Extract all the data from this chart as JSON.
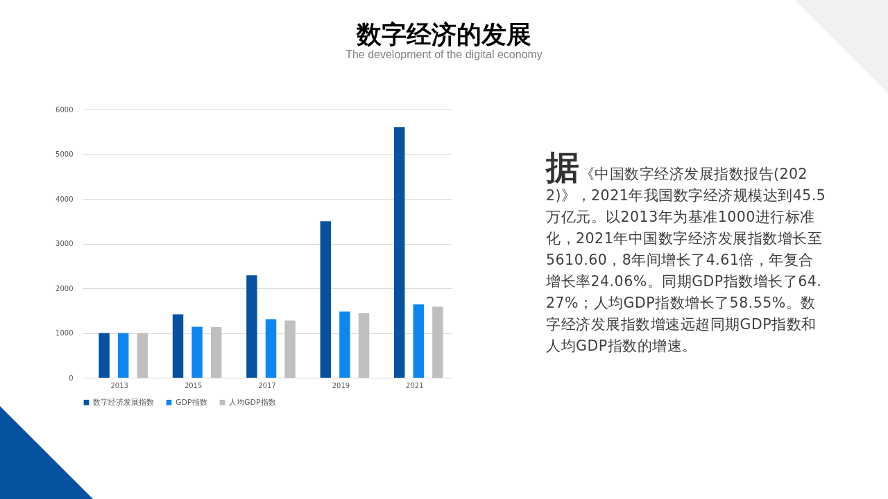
{
  "chart_data": {
    "type": "bar",
    "title": "数字经济的发展",
    "subtitle": "The development of the digital economy",
    "categories": [
      "2013",
      "2015",
      "2017",
      "2019",
      "2021"
    ],
    "series": [
      {
        "name": "数字经济发展指数",
        "color": "#0652a0",
        "values": [
          1000,
          1420,
          2290,
          3500,
          5610
        ]
      },
      {
        "name": "GDP指数",
        "color": "#0c87f0",
        "values": [
          1000,
          1140,
          1310,
          1480,
          1640
        ]
      },
      {
        "name": "人均GDP指数",
        "color": "#bfbfbf",
        "values": [
          1000,
          1130,
          1280,
          1440,
          1590
        ]
      }
    ],
    "ylim": [
      0,
      6000
    ],
    "yticks": [
      0,
      1000,
      2000,
      3000,
      4000,
      5000,
      6000
    ],
    "grid": "y",
    "legend": "bottom",
    "annotations": [
      "据《中国数字经济发展指数报告(2022)》，2021年我国数字经济规模达到45.5万亿元。以2013年为基准1000进行标准化，2021年中国数字经济发展指数增长至5610.60，8年间增长了4.61倍，年复合增长率24.06%。同期GDP指数增长了64.27%；人均GDP指数增长了58.55%。数字经济发展指数增速远超同期GDP指数和人均GDP指数的增速。"
    ]
  }
}
